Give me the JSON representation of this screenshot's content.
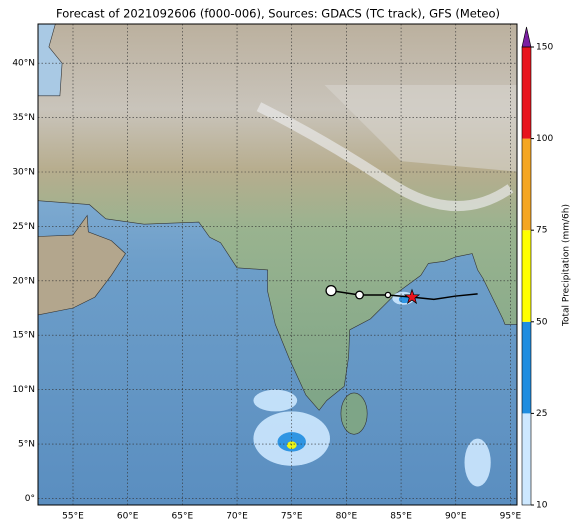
{
  "title": "Forecast of 2021092606 (f000-006), Sources: GDACS (TC track), GFS (Meteo)",
  "map": {
    "xlim": [
      51.8,
      95.6
    ],
    "ylim": [
      -0.6,
      43.6
    ],
    "xticks": [
      {
        "value": 55,
        "label": "55°E"
      },
      {
        "value": 60,
        "label": "60°E"
      },
      {
        "value": 65,
        "label": "65°E"
      },
      {
        "value": 70,
        "label": "70°E"
      },
      {
        "value": 75,
        "label": "75°E"
      },
      {
        "value": 80,
        "label": "80°E"
      },
      {
        "value": 85,
        "label": "85°E"
      },
      {
        "value": 90,
        "label": "90°E"
      },
      {
        "value": 95,
        "label": "95°E"
      }
    ],
    "yticks": [
      {
        "value": 0,
        "label": "0°"
      },
      {
        "value": 5,
        "label": "5°N"
      },
      {
        "value": 10,
        "label": "10°N"
      },
      {
        "value": 15,
        "label": "15°N"
      },
      {
        "value": 20,
        "label": "20°N"
      },
      {
        "value": 25,
        "label": "25°N"
      },
      {
        "value": 30,
        "label": "30°N"
      },
      {
        "value": 35,
        "label": "35°N"
      },
      {
        "value": 40,
        "label": "40°N"
      }
    ],
    "grid": true
  },
  "track": {
    "past_lon": [
      78.6,
      81.2,
      83.8
    ],
    "past_lat": [
      19.1,
      18.7,
      18.7
    ],
    "current_lon": 86.0,
    "current_lat": 18.5,
    "forecast_lon": [
      88.0,
      90.0,
      92.0
    ],
    "forecast_lat": [
      18.3,
      18.6,
      18.8
    ]
  },
  "colorbar": {
    "label": "Total Precipitation (mm/6h)",
    "ticks": [
      10,
      25,
      50,
      75,
      100,
      150
    ],
    "colors": [
      "#cde8ff",
      "#1f8de0",
      "#ffff00",
      "#f5a623",
      "#e8141e"
    ],
    "extend_color": "#7b1fa2"
  }
}
